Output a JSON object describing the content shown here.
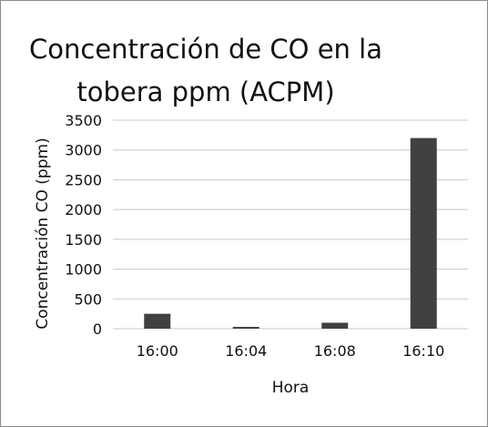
{
  "chart_data": {
    "type": "bar",
    "title_lines": [
      "Concentración de CO en la",
      "tobera ppm (ACPM)"
    ],
    "xlabel": "Hora",
    "ylabel": "Concentración CO (ppm)",
    "categories": [
      "16:00",
      "16:04",
      "16:08",
      "16:10"
    ],
    "values": [
      250,
      30,
      100,
      3200
    ],
    "ylim": [
      0,
      3500
    ],
    "yticks": [
      0,
      500,
      1000,
      1500,
      2000,
      2500,
      3000,
      3500
    ],
    "grid": true,
    "legend": "none",
    "bar_color": "#404040",
    "grid_color": "#c8c8c8"
  }
}
